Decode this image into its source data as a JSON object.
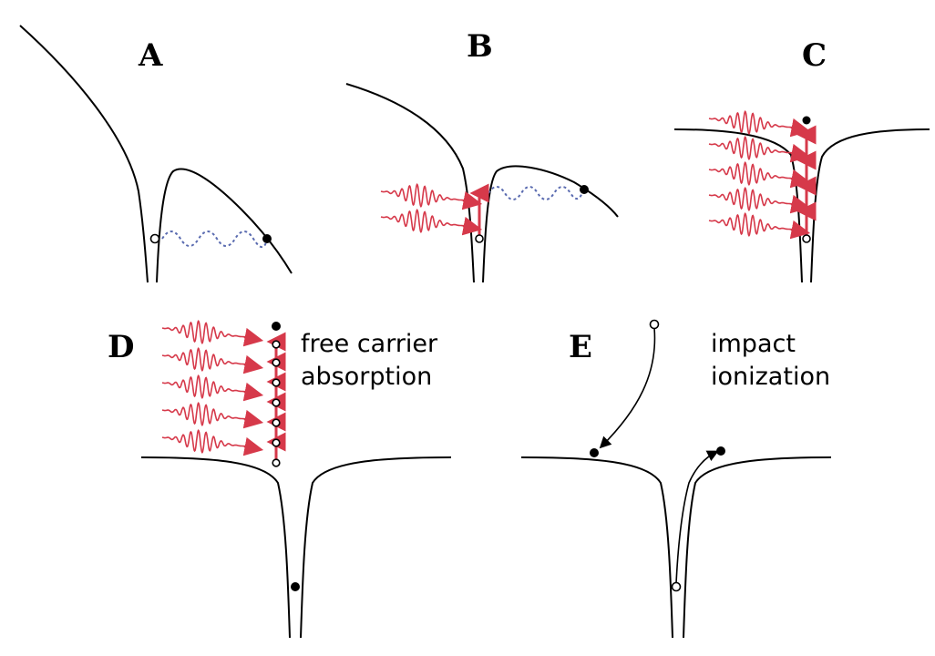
{
  "panels": [
    {
      "id": "A",
      "label": "A"
    },
    {
      "id": "B",
      "label": "B"
    },
    {
      "id": "C",
      "label": "C"
    },
    {
      "id": "D",
      "label": "D",
      "caption": [
        "free carrier",
        "absorption"
      ]
    },
    {
      "id": "E",
      "label": "E",
      "caption": [
        "impact",
        "ionization"
      ]
    }
  ],
  "colors": {
    "laser": "#d6394a",
    "tunnel_wave": "#5a6bb0",
    "potential": "#000000",
    "electron": "#000000",
    "hole": "#ffffff"
  }
}
